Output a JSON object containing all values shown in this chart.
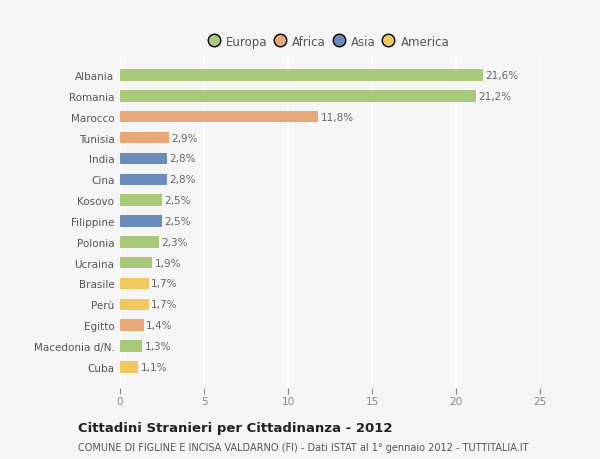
{
  "categories": [
    "Albania",
    "Romania",
    "Marocco",
    "Tunisia",
    "India",
    "Cina",
    "Kosovo",
    "Filippine",
    "Polonia",
    "Ucraina",
    "Brasile",
    "Perù",
    "Egitto",
    "Macedonia d/N.",
    "Cuba"
  ],
  "values": [
    21.6,
    21.2,
    11.8,
    2.9,
    2.8,
    2.8,
    2.5,
    2.5,
    2.3,
    1.9,
    1.7,
    1.7,
    1.4,
    1.3,
    1.1
  ],
  "colors": [
    "#a8c87a",
    "#a8c87a",
    "#e8a97a",
    "#e8a97a",
    "#6b8cba",
    "#6b8cba",
    "#a8c87a",
    "#6b8cba",
    "#a8c87a",
    "#a8c87a",
    "#f0c860",
    "#f0c860",
    "#e8a97a",
    "#a8c87a",
    "#f0c860"
  ],
  "bar_labels": [
    "21,6%",
    "21,2%",
    "11,8%",
    "2,9%",
    "2,8%",
    "2,8%",
    "2,5%",
    "2,5%",
    "2,3%",
    "1,9%",
    "1,7%",
    "1,7%",
    "1,4%",
    "1,3%",
    "1,1%"
  ],
  "legend_labels": [
    "Europa",
    "Africa",
    "Asia",
    "America"
  ],
  "legend_colors": [
    "#a8c87a",
    "#e8a97a",
    "#6b8cba",
    "#f0c860"
  ],
  "xlim": [
    0,
    25
  ],
  "xticks": [
    0,
    5,
    10,
    15,
    20,
    25
  ],
  "title": "Cittadini Stranieri per Cittadinanza - 2012",
  "subtitle": "COMUNE DI FIGLINE E INCISA VALDARNO (FI) - Dati ISTAT al 1° gennaio 2012 - TUTTITALIA.IT",
  "background_color": "#f5f5f5",
  "grid_color": "#ffffff",
  "bar_height": 0.55,
  "label_fontsize": 7.5,
  "tick_fontsize": 7.5,
  "title_fontsize": 9.5,
  "subtitle_fontsize": 7.0,
  "legend_fontsize": 8.5
}
